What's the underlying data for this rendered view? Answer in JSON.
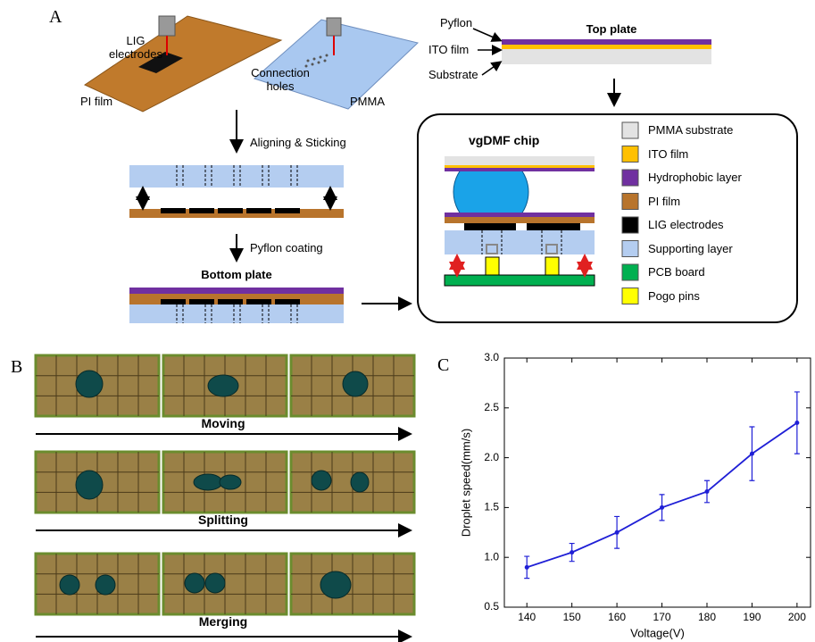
{
  "panel_labels": [
    "A",
    "B",
    "C"
  ],
  "panel_a": {
    "lig_electrodes": "LIG electrodes",
    "pi_film": "PI film",
    "connection_holes": "Connection holes",
    "pmma": "PMMA",
    "aligning": "Aligning & Sticking",
    "pyflon_coating": "Pyflon coating",
    "bottom_plate": "Bottom plate",
    "pyflon": "Pyflon",
    "ito_film": "ITO film",
    "substrate": "Substrate",
    "top_plate": "Top plate",
    "chip_title": "vgDMF chip",
    "legend": [
      {
        "label": "PMMA substrate",
        "color": "#e3e3e3"
      },
      {
        "label": "ITO film",
        "color": "#ffc000"
      },
      {
        "label": "Hydrophobic layer",
        "color": "#7030a0"
      },
      {
        "label": "PI film",
        "color": "#b8742c"
      },
      {
        "label": "LIG electrodes",
        "color": "#000000"
      },
      {
        "label": "Supporting layer",
        "color": "#b4cdf0"
      },
      {
        "label": "PCB board",
        "color": "#00b050"
      },
      {
        "label": "Pogo pins",
        "color": "#ffff00"
      }
    ]
  },
  "panel_b": {
    "steps": [
      "Moving",
      "Splitting",
      "Merging"
    ]
  },
  "chart_data": {
    "type": "line",
    "x_label": "Voltage(V)",
    "y_label": "Droplet speed(mm/s)",
    "x": [
      140,
      150,
      160,
      170,
      180,
      190,
      200
    ],
    "values": [
      0.9,
      1.05,
      1.25,
      1.5,
      1.66,
      2.04,
      2.35
    ],
    "errors": [
      0.11,
      0.09,
      0.16,
      0.13,
      0.11,
      0.27,
      0.31
    ],
    "color": "#1f1fd6",
    "xlim": [
      135,
      203
    ],
    "xticks": [
      140,
      150,
      160,
      170,
      180,
      190,
      200
    ],
    "ylim": [
      0.5,
      3.0
    ],
    "yticks": [
      0.5,
      {
        "value": 1.0,
        "label": "1.0"
      },
      1.5,
      {
        "value": 2.0,
        "label": "2.0"
      },
      2.5,
      {
        "value": 3.0,
        "label": "3.0"
      }
    ]
  }
}
